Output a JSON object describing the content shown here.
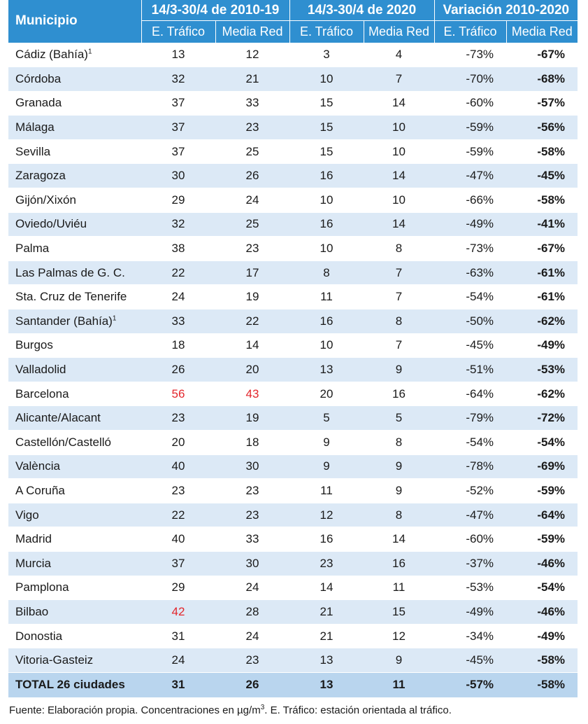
{
  "header": {
    "municipio": "Municipio",
    "group1": "14/3-30/4 de 2010-19",
    "group2": "14/3-30/4 de 2020",
    "group3": "Variación 2010-2020",
    "sub_etrafico": "E. Tráfico",
    "sub_mediared": "Media Red"
  },
  "rows": [
    {
      "name": "Cádiz (Bahía)",
      "sup": "1",
      "a": "13",
      "b": "12",
      "c": "3",
      "d": "4",
      "e": "-73%",
      "f": "-67%"
    },
    {
      "name": "Córdoba",
      "sup": "",
      "a": "32",
      "b": "21",
      "c": "10",
      "d": "7",
      "e": "-70%",
      "f": "-68%"
    },
    {
      "name": "Granada",
      "sup": "",
      "a": "37",
      "b": "33",
      "c": "15",
      "d": "14",
      "e": "-60%",
      "f": "-57%"
    },
    {
      "name": "Málaga",
      "sup": "",
      "a": "37",
      "b": "23",
      "c": "15",
      "d": "10",
      "e": "-59%",
      "f": "-56%"
    },
    {
      "name": "Sevilla",
      "sup": "",
      "a": "37",
      "b": "25",
      "c": "15",
      "d": "10",
      "e": "-59%",
      "f": "-58%"
    },
    {
      "name": "Zaragoza",
      "sup": "",
      "a": "30",
      "b": "26",
      "c": "16",
      "d": "14",
      "e": "-47%",
      "f": "-45%"
    },
    {
      "name": "Gijón/Xixón",
      "sup": "",
      "a": "29",
      "b": "24",
      "c": "10",
      "d": "10",
      "e": "-66%",
      "f": "-58%"
    },
    {
      "name": "Oviedo/Uviéu",
      "sup": "",
      "a": "32",
      "b": "25",
      "c": "16",
      "d": "14",
      "e": "-49%",
      "f": "-41%"
    },
    {
      "name": "Palma",
      "sup": "",
      "a": "38",
      "b": "23",
      "c": "10",
      "d": "8",
      "e": "-73%",
      "f": "-67%"
    },
    {
      "name": "Las Palmas de G. C.",
      "sup": "",
      "a": "22",
      "b": "17",
      "c": "8",
      "d": "7",
      "e": "-63%",
      "f": "-61%"
    },
    {
      "name": "Sta. Cruz de Tenerife",
      "sup": "",
      "a": "24",
      "b": "19",
      "c": "11",
      "d": "7",
      "e": "-54%",
      "f": "-61%"
    },
    {
      "name": "Santander (Bahía)",
      "sup": "1",
      "a": "33",
      "b": "22",
      "c": "16",
      "d": "8",
      "e": "-50%",
      "f": "-62%"
    },
    {
      "name": "Burgos",
      "sup": "",
      "a": "18",
      "b": "14",
      "c": "10",
      "d": "7",
      "e": "-45%",
      "f": "-49%"
    },
    {
      "name": "Valladolid",
      "sup": "",
      "a": "26",
      "b": "20",
      "c": "13",
      "d": "9",
      "e": "-51%",
      "f": "-53%"
    },
    {
      "name": "Barcelona",
      "sup": "",
      "a": "56",
      "b": "43",
      "c": "20",
      "d": "16",
      "e": "-64%",
      "f": "-62%",
      "red_a": true,
      "red_b": true
    },
    {
      "name": "Alicante/Alacant",
      "sup": "",
      "a": "23",
      "b": "19",
      "c": "5",
      "d": "5",
      "e": "-79%",
      "f": "-72%"
    },
    {
      "name": "Castellón/Castelló",
      "sup": "",
      "a": "20",
      "b": "18",
      "c": "9",
      "d": "8",
      "e": "-54%",
      "f": "-54%"
    },
    {
      "name": "València",
      "sup": "",
      "a": "40",
      "b": "30",
      "c": "9",
      "d": "9",
      "e": "-78%",
      "f": "-69%"
    },
    {
      "name": "A Coruña",
      "sup": "",
      "a": "23",
      "b": "23",
      "c": "11",
      "d": "9",
      "e": "-52%",
      "f": "-59%"
    },
    {
      "name": "Vigo",
      "sup": "",
      "a": "22",
      "b": "23",
      "c": "12",
      "d": "8",
      "e": "-47%",
      "f": "-64%"
    },
    {
      "name": "Madrid",
      "sup": "",
      "a": "40",
      "b": "33",
      "c": "16",
      "d": "14",
      "e": "-60%",
      "f": "-59%"
    },
    {
      "name": "Murcia",
      "sup": "",
      "a": "37",
      "b": "30",
      "c": "23",
      "d": "16",
      "e": "-37%",
      "f": "-46%"
    },
    {
      "name": "Pamplona",
      "sup": "",
      "a": "29",
      "b": "24",
      "c": "14",
      "d": "11",
      "e": "-53%",
      "f": "-54%"
    },
    {
      "name": "Bilbao",
      "sup": "",
      "a": "42",
      "b": "28",
      "c": "21",
      "d": "15",
      "e": "-49%",
      "f": "-46%",
      "red_a": true
    },
    {
      "name": "Donostia",
      "sup": "",
      "a": "31",
      "b": "24",
      "c": "21",
      "d": "12",
      "e": "-34%",
      "f": "-49%"
    },
    {
      "name": "Vitoria-Gasteiz",
      "sup": "",
      "a": "24",
      "b": "23",
      "c": "13",
      "d": "9",
      "e": "-45%",
      "f": "-58%"
    }
  ],
  "total": {
    "name": "TOTAL 26 ciudades",
    "a": "31",
    "b": "26",
    "c": "13",
    "d": "11",
    "e": "-57%",
    "f": "-58%"
  },
  "footnote": {
    "pre": "Fuente: Elaboración propia. Concentraciones en µg/m",
    "sup": "3",
    "post": ". E. Tráfico: estación orientada al tráfico."
  },
  "colors": {
    "header_bg": "#2f8fd0",
    "stripe": "#dce9f6",
    "total_bg": "#b9d5ee",
    "red_value": "#e3262c"
  }
}
